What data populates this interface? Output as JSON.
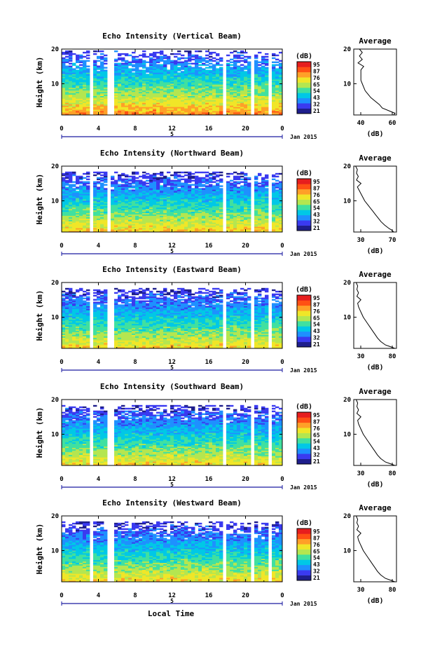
{
  "figure": {
    "bottom_xlabel": "Local Time",
    "date_label": "Jan 2015",
    "day_marker": "5"
  },
  "colorbar": {
    "unit": "(dB)",
    "tick_labels": [
      "95",
      "87",
      "76",
      "65",
      "54",
      "43",
      "32",
      "21"
    ],
    "colors": [
      "#1e1e8c",
      "#3a3af0",
      "#1e90ff",
      "#00c8e6",
      "#40e0a0",
      "#b4e650",
      "#f0e628",
      "#ffa028",
      "#ff5014",
      "#e61e1e"
    ]
  },
  "chart_data": [
    {
      "type": "heatmap",
      "title": "Echo Intensity (Vertical Beam)",
      "ylabel": "Height (km)",
      "xticks": [
        "0",
        "4",
        "8",
        "12",
        "16",
        "20",
        "0"
      ],
      "yticks": [
        "20",
        "10"
      ],
      "xlim": [
        0,
        24
      ],
      "ylim": [
        1,
        20
      ],
      "gaps_hours": [
        3.3,
        5.1,
        5.7,
        17.6,
        20.6,
        22.7
      ],
      "max_height_km": 19.5,
      "surface_db": 80,
      "upper_db": 30,
      "average_profile": {
        "title": "Average",
        "xlabel": "(dB)",
        "xticks": [
          "40",
          "60"
        ],
        "yticks": [
          "20",
          "10"
        ],
        "xlim": [
          35,
          65
        ],
        "ylim": [
          1,
          20
        ],
        "heights": [
          1,
          1.5,
          2,
          3,
          4,
          5,
          6,
          7,
          8,
          9,
          10,
          11,
          12,
          13,
          14,
          15,
          16,
          17,
          18,
          19,
          20
        ],
        "values": [
          63,
          64,
          61,
          55,
          53,
          50,
          47,
          45,
          43,
          42,
          41,
          40,
          40,
          40,
          40,
          42,
          38,
          41,
          39,
          41,
          39
        ]
      }
    },
    {
      "type": "heatmap",
      "title": "Echo Intensity (Northward Beam)",
      "ylabel": "Height (km)",
      "xticks": [
        "0",
        "4",
        "8",
        "12",
        "16",
        "20",
        "0"
      ],
      "yticks": [
        "20",
        "10"
      ],
      "xlim": [
        0,
        24
      ],
      "ylim": [
        1,
        20
      ],
      "gaps_hours": [
        3.2,
        5.3,
        17.8,
        20.6,
        22.6
      ],
      "max_height_km": 18.5,
      "surface_db": 74,
      "upper_db": 28,
      "average_profile": {
        "title": "Average",
        "xlabel": "(dB)",
        "xticks": [
          "30",
          "70"
        ],
        "yticks": [
          "20",
          "10"
        ],
        "xlim": [
          28,
          75
        ],
        "ylim": [
          1,
          20
        ],
        "heights": [
          1,
          1.5,
          2,
          3,
          4,
          5,
          6,
          7,
          8,
          9,
          10,
          11,
          12,
          13,
          14,
          15,
          16,
          17,
          18,
          19,
          20
        ],
        "values": [
          72,
          70,
          67,
          62,
          58,
          55,
          52,
          49,
          46,
          43,
          40,
          38,
          36,
          34,
          32,
          36,
          31,
          33,
          31,
          32,
          30
        ]
      }
    },
    {
      "type": "heatmap",
      "title": "Echo Intensity (Eastward Beam)",
      "ylabel": "Height (km)",
      "xticks": [
        "0",
        "4",
        "8",
        "12",
        "16",
        "20",
        "0"
      ],
      "yticks": [
        "20",
        "10"
      ],
      "xlim": [
        0,
        24
      ],
      "ylim": [
        1,
        20
      ],
      "gaps_hours": [
        3.2,
        5.3,
        5.7,
        17.8,
        20.6,
        22.6
      ],
      "max_height_km": 18.5,
      "surface_db": 72,
      "upper_db": 28,
      "average_profile": {
        "title": "Average",
        "xlabel": "(dB)",
        "xticks": [
          "30",
          "80"
        ],
        "yticks": [
          "20",
          "10"
        ],
        "xlim": [
          28,
          82
        ],
        "ylim": [
          1,
          20
        ],
        "heights": [
          1,
          1.5,
          2,
          3,
          4,
          5,
          6,
          7,
          8,
          9,
          10,
          11,
          12,
          13,
          14,
          15,
          16,
          17,
          18,
          19,
          20
        ],
        "values": [
          80,
          74,
          68,
          62,
          58,
          55,
          52,
          49,
          46,
          43,
          40,
          38,
          36,
          34,
          33,
          37,
          32,
          34,
          32,
          33,
          31
        ]
      }
    },
    {
      "type": "heatmap",
      "title": "Echo Intensity (Southward Beam)",
      "ylabel": "Height (km)",
      "xticks": [
        "0",
        "4",
        "8",
        "12",
        "16",
        "20",
        "0"
      ],
      "yticks": [
        "20",
        "10"
      ],
      "xlim": [
        0,
        24
      ],
      "ylim": [
        1,
        20
      ],
      "gaps_hours": [
        3.2,
        5.3,
        5.7,
        17.8,
        20.6,
        22.6
      ],
      "max_height_km": 18.5,
      "surface_db": 72,
      "upper_db": 28,
      "average_profile": {
        "title": "Average",
        "xlabel": "(dB)",
        "xticks": [
          "30",
          "80"
        ],
        "yticks": [
          "20",
          "10"
        ],
        "xlim": [
          28,
          82
        ],
        "ylim": [
          1,
          20
        ],
        "heights": [
          1,
          1.5,
          2,
          3,
          4,
          5,
          6,
          7,
          8,
          9,
          10,
          11,
          12,
          13,
          14,
          15,
          16,
          17,
          18,
          19,
          20
        ],
        "values": [
          80,
          74,
          68,
          62,
          58,
          55,
          52,
          49,
          46,
          43,
          40,
          38,
          36,
          34,
          33,
          37,
          32,
          34,
          32,
          33,
          31
        ]
      }
    },
    {
      "type": "heatmap",
      "title": "Echo Intensity (Westward Beam)",
      "ylabel": "Height (km)",
      "xticks": [
        "0",
        "4",
        "8",
        "12",
        "16",
        "20",
        "0"
      ],
      "yticks": [
        "20",
        "10"
      ],
      "xlim": [
        0,
        24
      ],
      "ylim": [
        1,
        20
      ],
      "gaps_hours": [
        3.2,
        5.3,
        5.7,
        17.8,
        20.6,
        22.6
      ],
      "max_height_km": 18.5,
      "surface_db": 72,
      "upper_db": 28,
      "average_profile": {
        "title": "Average",
        "xlabel": "(dB)",
        "xticks": [
          "30",
          "80"
        ],
        "yticks": [
          "20",
          "10"
        ],
        "xlim": [
          28,
          82
        ],
        "ylim": [
          1,
          20
        ],
        "heights": [
          1,
          1.5,
          2,
          3,
          4,
          5,
          6,
          7,
          8,
          9,
          10,
          11,
          12,
          13,
          14,
          15,
          16,
          17,
          18,
          19,
          20
        ],
        "values": [
          80,
          74,
          68,
          62,
          58,
          55,
          52,
          49,
          46,
          43,
          40,
          38,
          36,
          34,
          33,
          37,
          32,
          34,
          32,
          33,
          31
        ]
      }
    }
  ]
}
